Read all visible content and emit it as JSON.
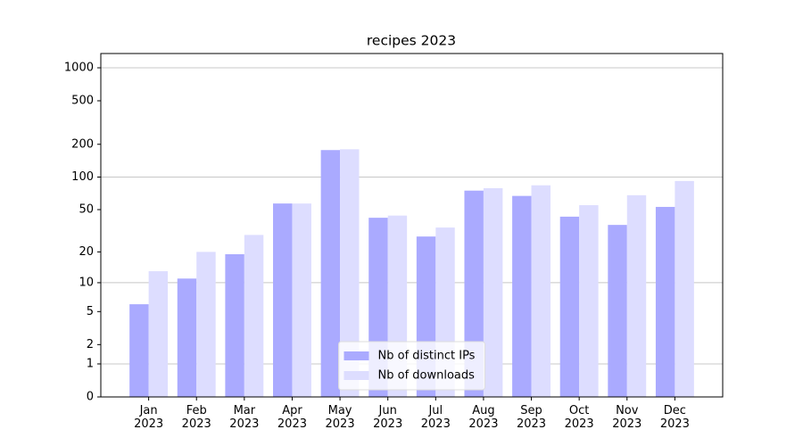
{
  "chart_data": {
    "type": "bar",
    "title": "recipes 2023",
    "categories": [
      "Jan\n2023",
      "Feb\n2023",
      "Mar\n2023",
      "Apr\n2023",
      "May\n2023",
      "Jun\n2023",
      "Jul\n2023",
      "Aug\n2023",
      "Sep\n2023",
      "Oct\n2023",
      "Nov\n2023",
      "Dec\n2023"
    ],
    "series": [
      {
        "name": "Nb of distinct IPs",
        "color": "#aaaaff",
        "values": [
          6,
          11,
          19,
          57,
          177,
          42,
          28,
          75,
          67,
          43,
          36,
          53
        ]
      },
      {
        "name": "Nb of downloads",
        "color": "#ddddff",
        "values": [
          13,
          20,
          29,
          57,
          180,
          44,
          34,
          79,
          84,
          55,
          68,
          92
        ]
      }
    ],
    "yscale": "log1p",
    "ylim": [
      0,
      1350
    ],
    "yticks": [
      0,
      1,
      2,
      5,
      10,
      20,
      50,
      100,
      200,
      500,
      1000
    ],
    "grid": true,
    "legend": "lower center"
  }
}
